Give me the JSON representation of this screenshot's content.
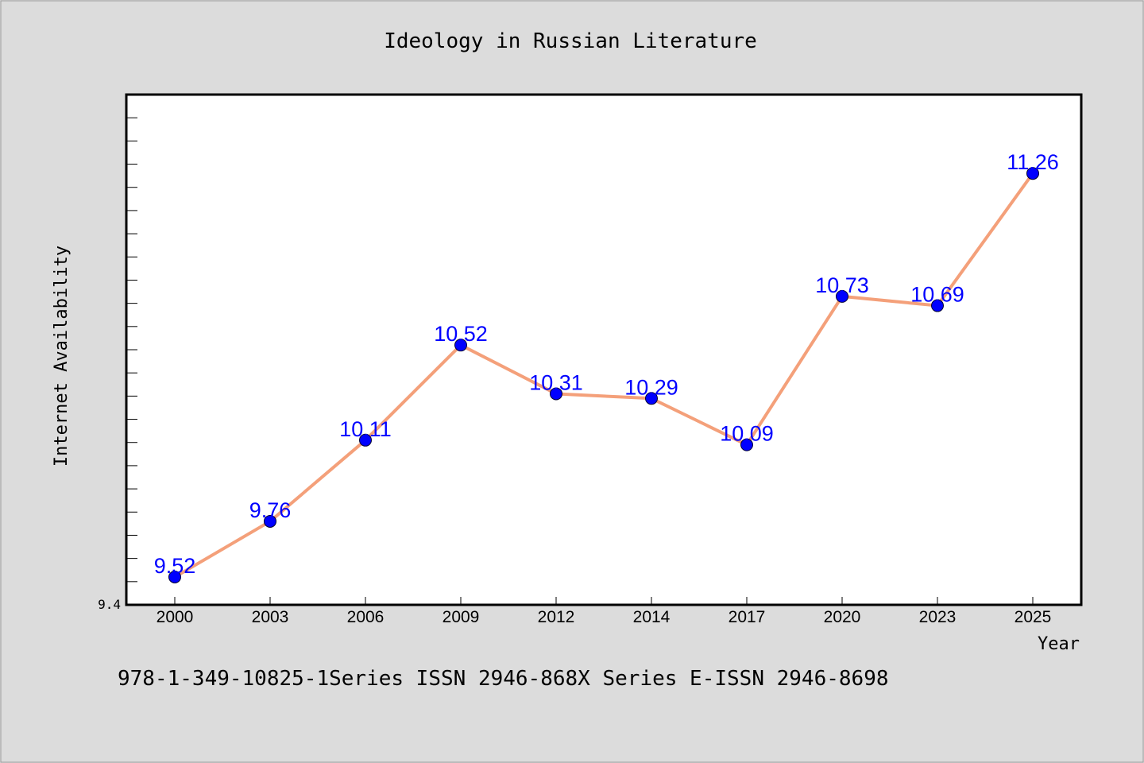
{
  "chart_data": {
    "type": "line",
    "title": "Ideology in Russian Literature",
    "xlabel": "Year",
    "ylabel": "Internet Availability",
    "categories": [
      "2000",
      "2003",
      "2006",
      "2009",
      "2012",
      "2014",
      "2017",
      "2020",
      "2023",
      "2025"
    ],
    "series": [
      {
        "values": [
          9.52,
          9.76,
          10.11,
          10.52,
          10.31,
          10.29,
          10.09,
          10.73,
          10.69,
          11.26
        ]
      }
    ],
    "data_labels": [
      "9.52",
      "9.76",
      "10.11",
      "10.52",
      "10.31",
      "10.29",
      "10.09",
      "10.73",
      "10.69",
      "11.26"
    ],
    "ylim": [
      9.4,
      11.6
    ],
    "ytick_min_label": "9.4",
    "grid": false,
    "line_color": "#f4a07a",
    "marker_color": "#0000ff",
    "label_color": "#0000ff"
  },
  "footer": {
    "text": "978-1-349-10825-1Series ISSN 2946-868X Series E-ISSN 2946-8698"
  }
}
